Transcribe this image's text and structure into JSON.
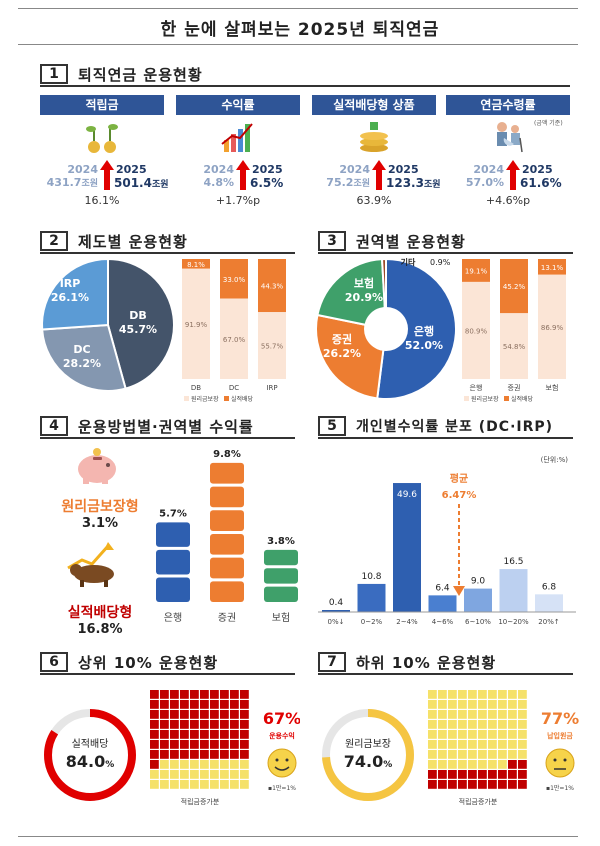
{
  "title": "한 눈에 살펴보는 2025년 퇴직연금",
  "sections": [
    {
      "num": "1",
      "label": "퇴직연금 운용현황"
    },
    {
      "num": "2",
      "label": "제도별 운용현황"
    },
    {
      "num": "3",
      "label": "권역별 운용현황"
    },
    {
      "num": "4",
      "label": "운용방법별·권역별 수익률"
    },
    {
      "num": "5",
      "label": "개인별수익률 분포 (DC·IRP)"
    },
    {
      "num": "6",
      "label": "상위 10% 운용현황"
    },
    {
      "num": "7",
      "label": "하위 10% 운용현황"
    }
  ],
  "kpis": [
    {
      "label": "적립금",
      "y1": "2024",
      "v1": "431.7",
      "u1": "조원",
      "y2": "2025",
      "v2": "501.4",
      "u2": "조원",
      "change": "16.1%",
      "note": ""
    },
    {
      "label": "수익률",
      "y1": "2024",
      "v1": "4.8%",
      "u1": "",
      "y2": "2025",
      "v2": "6.5%",
      "u2": "",
      "change": "+1.7%p",
      "note": ""
    },
    {
      "label": "실적배당형 상품",
      "y1": "2024",
      "v1": "75.2",
      "u1": "조원",
      "y2": "2025",
      "v2": "123.3",
      "u2": "조원",
      "change": "63.9%",
      "note": ""
    },
    {
      "label": "연금수령률",
      "y1": "2024",
      "v1": "57.0%",
      "u1": "",
      "y2": "2025",
      "v2": "61.6%",
      "u2": "",
      "change": "+4.6%p",
      "note": "(금액 기준)"
    }
  ],
  "colors": {
    "navy": "#2f5597",
    "db": "#44546a",
    "dc": "#8497b0",
    "irp": "#5b9bd5",
    "orange": "#ed7d31",
    "green": "#3fa06a",
    "lightOrange": "#fbe5d6",
    "red": "#c00000",
    "yellow": "#f5e16a"
  },
  "chart_data": [
    {
      "type": "pie",
      "id": "system",
      "labels": [
        "DB",
        "DC",
        "IRP"
      ],
      "values": [
        45.7,
        28.2,
        26.1
      ],
      "valueLabels": [
        "45.7%",
        "28.2%",
        "26.1%"
      ]
    },
    {
      "type": "bar",
      "id": "system-stack",
      "categories": [
        "DB",
        "DC",
        "IRP"
      ],
      "series": [
        {
          "name": "원리금보장",
          "values": [
            91.9,
            67.0,
            55.7
          ]
        },
        {
          "name": "실적배당",
          "values": [
            8.1,
            33.0,
            44.3
          ]
        }
      ]
    },
    {
      "type": "pie",
      "id": "sector",
      "labels": [
        "은행",
        "증권",
        "보험",
        "기타"
      ],
      "values": [
        52.0,
        26.2,
        20.9,
        0.9
      ],
      "valueLabels": [
        "52.0%",
        "26.2%",
        "20.9%",
        "0.9%"
      ]
    },
    {
      "type": "bar",
      "id": "sector-stack",
      "categories": [
        "은행",
        "증권",
        "보험"
      ],
      "series": [
        {
          "name": "원리금보장",
          "values": [
            80.9,
            54.8,
            86.9
          ]
        },
        {
          "name": "실적배당",
          "values": [
            19.1,
            45.2,
            13.1
          ]
        }
      ]
    },
    {
      "type": "bar",
      "id": "sector-return",
      "categories": [
        "은행",
        "증권",
        "보험"
      ],
      "values": [
        5.7,
        9.8,
        3.8
      ],
      "valueLabels": [
        "5.7%",
        "9.8%",
        "3.8%"
      ]
    },
    {
      "type": "bar",
      "id": "dist",
      "categories": [
        "0%↓",
        "0~2%",
        "2~4%",
        "4~6%",
        "6~10%",
        "10~20%",
        "20%↑"
      ],
      "values": [
        0.4,
        10.8,
        49.6,
        6.4,
        9.0,
        16.5,
        6.8
      ],
      "unit": "(단위:%)",
      "avgLabel": "평균",
      "avgValue": "6.47%"
    },
    {
      "type": "other",
      "id": "top10",
      "ringLabel": "실적배당",
      "ringValue": "84.0",
      "ringUnit": "%",
      "share": 84.0,
      "gridPct": "67%",
      "gridLabel": "운용수익",
      "xlabel": "적립금증가분",
      "legend": "▪1만=1%"
    },
    {
      "type": "other",
      "id": "bottom10",
      "ringLabel": "원리금보장",
      "ringValue": "74.0",
      "ringUnit": "%",
      "share": 74.0,
      "gridPct": "77%",
      "gridLabel": "납입원금",
      "xlabel": "적립금증가분",
      "legend": "▪1만=1%"
    }
  ],
  "method": [
    {
      "label": "원리금보장형",
      "value": "3.1%"
    },
    {
      "label": "실적배당형",
      "value": "16.8%"
    }
  ]
}
